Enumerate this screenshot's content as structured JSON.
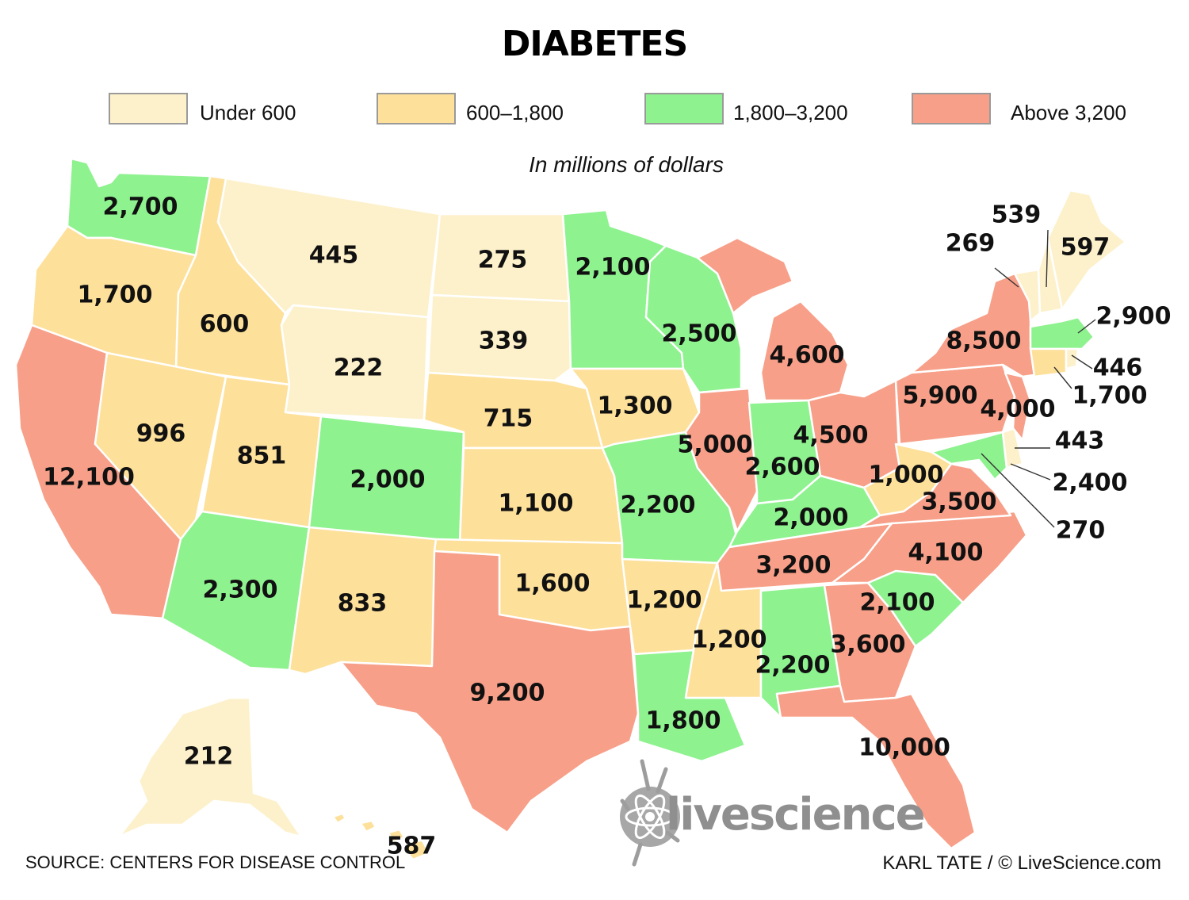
{
  "title": "DIABETES",
  "subtitle": "In millions of dollars",
  "legend": [
    {
      "label": "Under 600",
      "color": "#fdf1cc"
    },
    {
      "label": "600–1,800",
      "color": "#fde09a"
    },
    {
      "label": "1,800–3,200",
      "color": "#8ef28f"
    },
    {
      "label": "Above 3,200",
      "color": "#f79f88"
    }
  ],
  "source": "SOURCE: CENTERS FOR DISEASE CONTROL",
  "credit": "KARL TATE / © LiveScience.com",
  "logo_text": "livescience",
  "states": {
    "WA": "2,700",
    "OR": "1,700",
    "CA": "12,100",
    "ID": "600",
    "NV": "996",
    "MT": "445",
    "WY": "222",
    "UT": "851",
    "AZ": "2,300",
    "CO": "2,000",
    "NM": "833",
    "ND": "275",
    "SD": "339",
    "NE": "715",
    "KS": "1,100",
    "OK": "1,600",
    "TX": "9,200",
    "MN": "2,100",
    "IA": "1,300",
    "MO": "2,200",
    "AR": "1,200",
    "LA": "1,800",
    "WI": "2,500",
    "IL": "5,000",
    "MS": "1,200",
    "MI": "4,600",
    "IN": "2,600",
    "KY": "2,000",
    "TN": "3,200",
    "AL": "2,200",
    "OH": "4,500",
    "WV": "1,000",
    "GA": "3,600",
    "FL": "10,000",
    "SC": "2,100",
    "NC": "4,100",
    "VA": "3,500",
    "PA": "5,900",
    "NY": "8,500",
    "NJ": "4,000",
    "VT": "269",
    "NH": "539",
    "ME": "597",
    "MA": "2,900",
    "RI": "446",
    "CT": "1,700",
    "DE": "443",
    "MD": "2,400",
    "DC": "270",
    "AK": "212",
    "HI": "587"
  }
}
